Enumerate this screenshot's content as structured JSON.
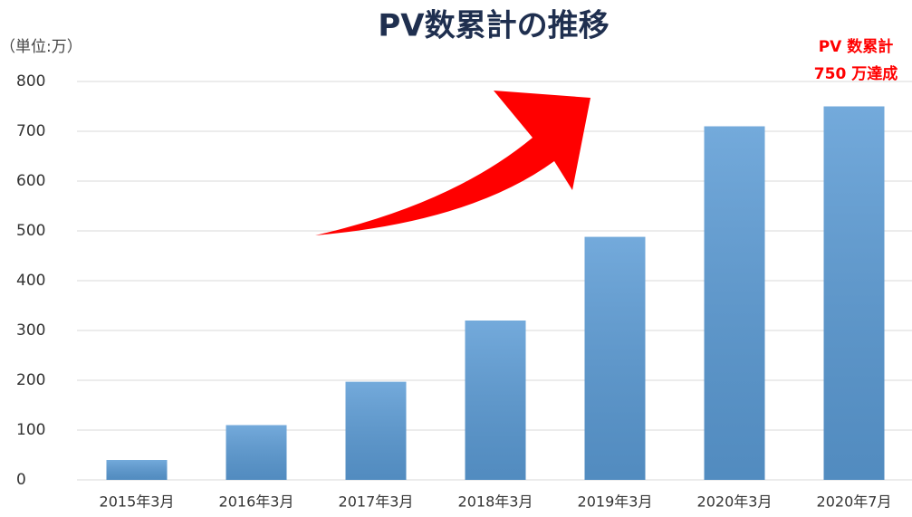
{
  "chart_data": {
    "type": "bar",
    "title": "PV数累計の推移",
    "unit_label": "（単位:万）",
    "annotation": [
      "PV 数累計",
      "750 万達成"
    ],
    "categories": [
      "2015年3月",
      "2016年3月",
      "2017年3月",
      "2018年3月",
      "2019年3月",
      "2020年3月",
      "2020年7月"
    ],
    "values": [
      40,
      110,
      197,
      320,
      488,
      710,
      750
    ],
    "color": "#5b9bd5",
    "ylim": [
      0,
      800
    ],
    "yticks": [
      0,
      100,
      200,
      300,
      400,
      500,
      600,
      700,
      800
    ],
    "grid": true
  }
}
